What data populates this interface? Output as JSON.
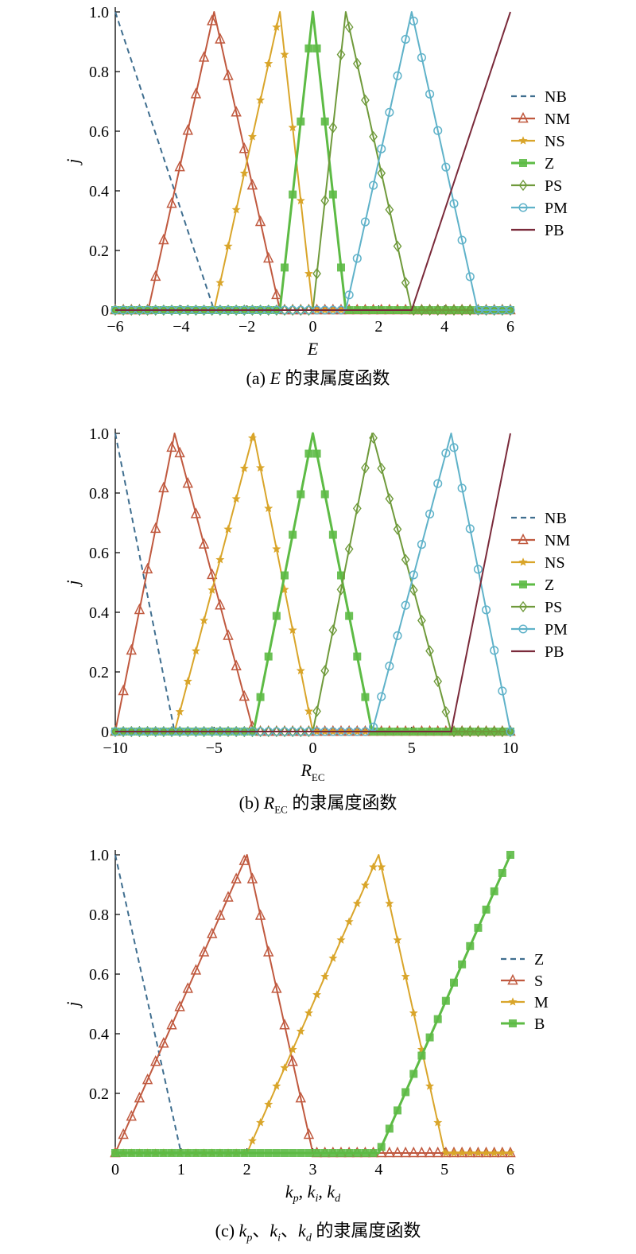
{
  "chart_data": [
    {
      "type": "line",
      "caption_prefix": "(a)",
      "caption_var": "E",
      "caption_text": "的隶属度函数",
      "xlabel": "E",
      "xlabel_sub": "",
      "ylabel": "j",
      "xlim": [
        -6,
        6
      ],
      "ylim": [
        0,
        1
      ],
      "xticks": [
        -6,
        -4,
        -2,
        0,
        2,
        4,
        6
      ],
      "xtick_labels": [
        "−6",
        "−4",
        "−2",
        "0",
        "2",
        "4",
        "6"
      ],
      "yticks": [
        0,
        0.2,
        0.4,
        0.6,
        0.8,
        1.0
      ],
      "ytick_labels": [
        "0",
        "0.2",
        "0.4",
        "0.6",
        "0.8",
        "1.0"
      ],
      "legend_position": "right",
      "series": [
        {
          "name": "NB",
          "color": "#3f6e8f",
          "style": "dashed",
          "marker": "none",
          "points": [
            [
              -6,
              1
            ],
            [
              -3,
              0
            ],
            [
              6,
              0
            ]
          ]
        },
        {
          "name": "NM",
          "color": "#c0593f",
          "style": "solid",
          "marker": "triangle",
          "points": [
            [
              -6,
              0
            ],
            [
              -5,
              0
            ],
            [
              -3,
              1
            ],
            [
              -1,
              0
            ],
            [
              6,
              0
            ]
          ]
        },
        {
          "name": "NS",
          "color": "#d9a52a",
          "style": "solid",
          "marker": "star",
          "points": [
            [
              -6,
              0
            ],
            [
              -3,
              0
            ],
            [
              -1,
              1
            ],
            [
              0,
              0
            ],
            [
              6,
              0
            ]
          ]
        },
        {
          "name": "Z",
          "color": "#5dbb45",
          "style": "solid",
          "marker": "square",
          "points": [
            [
              -6,
              0
            ],
            [
              -1,
              0
            ],
            [
              0,
              1
            ],
            [
              1,
              0
            ],
            [
              6,
              0
            ]
          ]
        },
        {
          "name": "PS",
          "color": "#6f9a3b",
          "style": "solid",
          "marker": "diamond",
          "points": [
            [
              -6,
              0
            ],
            [
              0,
              0
            ],
            [
              1,
              1
            ],
            [
              3,
              0
            ],
            [
              6,
              0
            ]
          ]
        },
        {
          "name": "PM",
          "color": "#5fb2c9",
          "style": "solid",
          "marker": "circle",
          "points": [
            [
              -6,
              0
            ],
            [
              1,
              0
            ],
            [
              3,
              1
            ],
            [
              5,
              0
            ],
            [
              6,
              0
            ]
          ]
        },
        {
          "name": "PB",
          "color": "#7a2a3a",
          "style": "solid",
          "marker": "none",
          "points": [
            [
              -6,
              0
            ],
            [
              3,
              0
            ],
            [
              6,
              1
            ]
          ]
        }
      ]
    },
    {
      "type": "line",
      "caption_prefix": "(b)",
      "caption_var": "R",
      "caption_var_sub": "EC",
      "caption_text": "的隶属度函数",
      "xlabel": "R",
      "xlabel_sub": "EC",
      "ylabel": "j",
      "xlim": [
        -10,
        10
      ],
      "ylim": [
        0,
        1
      ],
      "xticks": [
        -10,
        -5,
        0,
        5,
        10
      ],
      "xtick_labels": [
        "−10",
        "−5",
        "0",
        "5",
        "10"
      ],
      "yticks": [
        0,
        0.2,
        0.4,
        0.6,
        0.8,
        1.0
      ],
      "ytick_labels": [
        "0",
        "0.2",
        "0.4",
        "0.6",
        "0.8",
        "1.0"
      ],
      "legend_position": "right",
      "series": [
        {
          "name": "NB",
          "color": "#3f6e8f",
          "style": "dashed",
          "marker": "none",
          "points": [
            [
              -10,
              1
            ],
            [
              -7,
              0
            ],
            [
              10,
              0
            ]
          ]
        },
        {
          "name": "NM",
          "color": "#c0593f",
          "style": "solid",
          "marker": "triangle",
          "points": [
            [
              -10,
              0
            ],
            [
              -7,
              1
            ],
            [
              -3,
              0
            ],
            [
              10,
              0
            ]
          ]
        },
        {
          "name": "NS",
          "color": "#d9a52a",
          "style": "solid",
          "marker": "star",
          "points": [
            [
              -10,
              0
            ],
            [
              -7,
              0
            ],
            [
              -3,
              1
            ],
            [
              0,
              0
            ],
            [
              10,
              0
            ]
          ]
        },
        {
          "name": "Z",
          "color": "#5dbb45",
          "style": "solid",
          "marker": "square",
          "points": [
            [
              -10,
              0
            ],
            [
              -3,
              0
            ],
            [
              0,
              1
            ],
            [
              3,
              0
            ],
            [
              10,
              0
            ]
          ]
        },
        {
          "name": "PS",
          "color": "#6f9a3b",
          "style": "solid",
          "marker": "diamond",
          "points": [
            [
              -10,
              0
            ],
            [
              0,
              0
            ],
            [
              3,
              1
            ],
            [
              7,
              0
            ],
            [
              10,
              0
            ]
          ]
        },
        {
          "name": "PM",
          "color": "#5fb2c9",
          "style": "solid",
          "marker": "circle",
          "points": [
            [
              -10,
              0
            ],
            [
              3,
              0
            ],
            [
              7,
              1
            ],
            [
              10,
              0
            ]
          ]
        },
        {
          "name": "PB",
          "color": "#7a2a3a",
          "style": "solid",
          "marker": "none",
          "points": [
            [
              -10,
              0
            ],
            [
              7,
              0
            ],
            [
              10,
              1
            ]
          ]
        }
      ]
    },
    {
      "type": "line",
      "caption_prefix": "(c)",
      "caption_text": "的隶属度函数",
      "caption_vars": [
        "k",
        "p",
        "k",
        "i",
        "k",
        "d"
      ],
      "xlabel": "k",
      "xlabel_parts": [
        "k",
        "p",
        "k",
        "i",
        "k",
        "d"
      ],
      "ylabel": "j",
      "xlim": [
        0,
        6
      ],
      "ylim": [
        0,
        1
      ],
      "xticks": [
        0,
        1,
        2,
        3,
        4,
        5,
        6
      ],
      "xtick_labels": [
        "0",
        "1",
        "2",
        "3",
        "4",
        "5",
        "6"
      ],
      "yticks": [
        0.2,
        0.4,
        0.6,
        0.8,
        1.0
      ],
      "ytick_labels": [
        "0.2",
        "0.4",
        "0.6",
        "0.8",
        "1.0"
      ],
      "legend_position": "right",
      "series": [
        {
          "name": "Z",
          "color": "#3f6e8f",
          "style": "dashed",
          "marker": "none",
          "points": [
            [
              0,
              1
            ],
            [
              1,
              0
            ],
            [
              6,
              0
            ]
          ]
        },
        {
          "name": "S",
          "color": "#c0593f",
          "style": "solid",
          "marker": "triangle",
          "points": [
            [
              0,
              0
            ],
            [
              2,
              1
            ],
            [
              3,
              0
            ],
            [
              6,
              0
            ]
          ]
        },
        {
          "name": "M",
          "color": "#d9a52a",
          "style": "solid",
          "marker": "star",
          "points": [
            [
              0,
              0
            ],
            [
              2,
              0
            ],
            [
              4,
              1
            ],
            [
              5,
              0
            ],
            [
              6,
              0
            ]
          ]
        },
        {
          "name": "B",
          "color": "#5dbb45",
          "style": "solid",
          "marker": "square",
          "points": [
            [
              0,
              0
            ],
            [
              4,
              0
            ],
            [
              6,
              1
            ]
          ]
        }
      ]
    }
  ]
}
